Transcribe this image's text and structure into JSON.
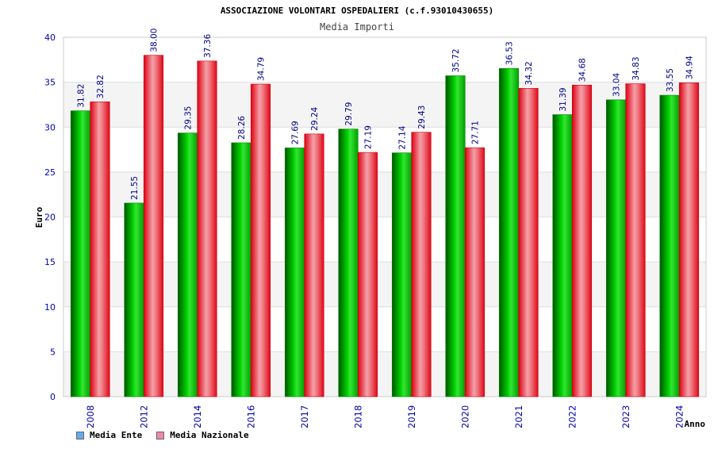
{
  "chart_data": {
    "type": "bar",
    "title": "ASSOCIAZIONE VOLONTARI OSPEDALIERI (c.f.93010430655)",
    "subtitle": "Media Importi",
    "xlabel": "Anno",
    "ylabel": "Euro",
    "ylim": [
      0,
      40
    ],
    "yticks": [
      0,
      5,
      10,
      15,
      20,
      25,
      30,
      35,
      40
    ],
    "categories": [
      "2008",
      "2012",
      "2014",
      "2016",
      "2017",
      "2018",
      "2019",
      "2020",
      "2021",
      "2022",
      "2023",
      "2024"
    ],
    "series": [
      {
        "name": "Media Ente",
        "values": [
          31.82,
          21.55,
          29.35,
          28.26,
          27.69,
          29.79,
          27.14,
          35.72,
          36.53,
          31.39,
          33.04,
          33.55
        ],
        "labels": [
          "31.82",
          "21.55",
          "29.35",
          "28.26",
          "27.69",
          "29.79",
          "27.14",
          "35.72",
          "36.53",
          "31.39",
          "33.04",
          "33.55"
        ]
      },
      {
        "name": "Media Nazionale",
        "values": [
          32.82,
          38.0,
          37.36,
          34.79,
          29.24,
          27.19,
          29.43,
          27.71,
          34.32,
          34.68,
          34.83,
          34.94
        ],
        "labels": [
          "32.82",
          "38.00",
          "37.36",
          "34.79",
          "29.24",
          "27.19",
          "29.43",
          "27.71",
          "34.32",
          "34.68",
          "34.83",
          "34.94"
        ]
      }
    ],
    "grid": true,
    "legend_position": "bottom-left"
  },
  "colors": {
    "ente_bar": "#00aa00",
    "nazionale_bar": "#ee1122",
    "ente_legend": "#66aaee",
    "nazionale_legend": "#ee88aa",
    "axis_text": "#0000aa",
    "label_text": "#000088"
  }
}
